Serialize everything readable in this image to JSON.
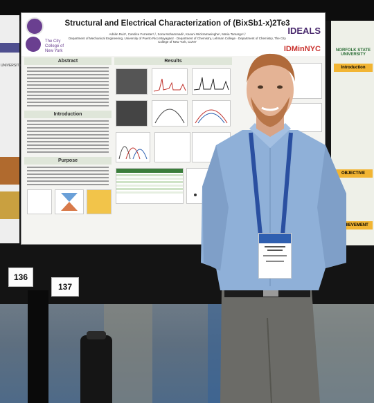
{
  "poster": {
    "title": "Structural and Electrical Characterization of (BixSb1-x)2Te3",
    "authors": "Adrián Ruiz¹, Candice Forrester¹,², Sona Mohammadi¹, Kasuni Wickramasinghe¹, Maria Tamargo¹,²",
    "affiliations": "Department of Mechanical Engineering, University of Puerto Rico Mayagüez · Department of Chemistry, Lehman College · Department of Chemistry, The City College of New York, CUNY",
    "institution": "The City College of New York",
    "sponsor_1": "IDEALS",
    "sponsor_2": "IDMinNYC",
    "sections": {
      "abstract": "Abstract",
      "introduction": "Introduction",
      "purpose": "Purpose",
      "results": "Results"
    }
  },
  "right_poster": {
    "university": "NORFOLK STATE UNIVERSITY",
    "introduction": "Introduction",
    "objective": "OBJECTIVE",
    "achievement": "ACHIEVEMENT"
  },
  "left_poster": {
    "university": "UNIVERSITY"
  },
  "board_numbers": {
    "left": "136",
    "right": "137"
  },
  "colors": {
    "shirt": "#8fb0d8",
    "lanyard": "#2a4fa0",
    "pants": "#6b6b67",
    "wall": "#141414",
    "floor": "#4e6a88"
  }
}
